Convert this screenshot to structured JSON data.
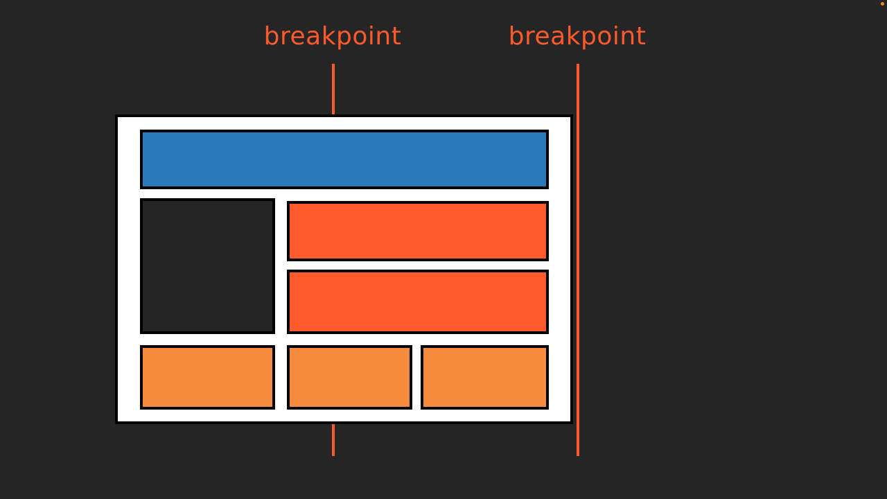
{
  "breakpoints": [
    {
      "label": "breakpoint"
    },
    {
      "label": "breakpoint"
    }
  ],
  "colors": {
    "background": "#252525",
    "accent": "#ff5a2c",
    "header": "#2a7aba",
    "sidebar": "#252525",
    "content": "#ff5a2c",
    "footer": "#f78b3d",
    "page": "#ffffff"
  }
}
